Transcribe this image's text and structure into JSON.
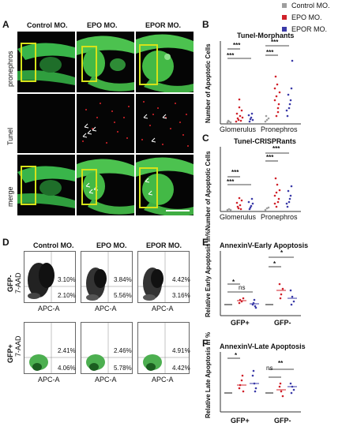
{
  "panelA": {
    "label": "A",
    "columns": [
      "Control MO.",
      "EPO MO.",
      "EPOR MO."
    ],
    "rows": [
      "pronephros",
      "Tunel",
      "merge"
    ]
  },
  "legend": {
    "items": [
      {
        "label": "Control MO.",
        "color": "#9e9e9e"
      },
      {
        "label": "EPO MO.",
        "color": "#d0212a"
      },
      {
        "label": "EPOR MO.",
        "color": "#3a3aa8"
      }
    ]
  },
  "panelB": {
    "label": "B",
    "title": "Tunel-Morphants",
    "ylabel": "Number of Apoptotic Cells",
    "groups": [
      "Glomerulus",
      "Pronephros"
    ],
    "sig": [
      "***",
      "***",
      "***",
      "***"
    ]
  },
  "panelC": {
    "label": "C",
    "title": "Tunel-CRISPRants",
    "ylabel": "Number of Apoptotic Cells",
    "groups": [
      "Glomerulus",
      "Pronephros"
    ],
    "sig": [
      "***",
      "***",
      "***",
      "***"
    ]
  },
  "panelD": {
    "label": "D",
    "columns": [
      "Control MO.",
      "EPO MO.",
      "EPOR MO."
    ],
    "rows": [
      {
        "label": "GFP-",
        "yaxis": "7-AAD",
        "xaxis": "APC-A",
        "upper": [
          "3.10%",
          "3.84%",
          "4.42%"
        ],
        "lower": [
          "2.10%",
          "5.56%",
          "3.16%"
        ]
      },
      {
        "label": "GFP+",
        "yaxis": "7-AAD",
        "xaxis": "APC-A",
        "upper": [
          "2.41%",
          "2.46%",
          "4.91%"
        ],
        "lower": [
          "4.06%",
          "5.78%",
          "4.42%"
        ]
      }
    ]
  },
  "panelE": {
    "label": "E",
    "title": "AnnexinV-Early Apoptosis",
    "ylabel": "Relative Early Apoptosis in%",
    "groups": [
      "GFP+",
      "GFP-"
    ],
    "sig": [
      "*",
      "ns",
      "*",
      "*"
    ]
  },
  "panelF": {
    "label": "F",
    "title": "AnnexinV-Late Apoptosis",
    "ylabel": "Relative Late Apoptosis in %",
    "groups": [
      "GFP+",
      "GFP-"
    ],
    "sig": [
      "*",
      "ns",
      "**"
    ]
  }
}
